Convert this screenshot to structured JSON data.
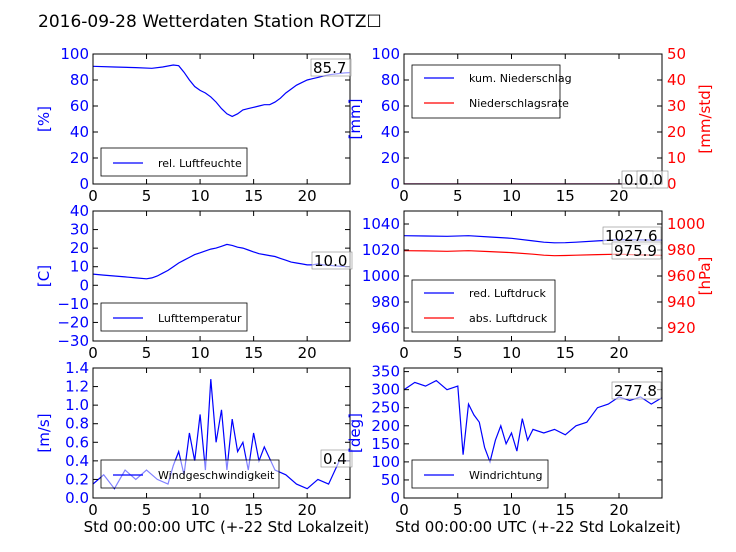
{
  "figure_title": "2016-09-28 Wetterdaten Station ROTZ☐",
  "colors": {
    "blue": "#0000ff",
    "red": "#ff0000",
    "black": "#000000",
    "grey": "#888888"
  },
  "chart_data": [
    {
      "id": "humidity",
      "type": "line",
      "xlim": [
        0,
        24
      ],
      "xticks": [
        "0",
        "5",
        "10",
        "15",
        "20"
      ],
      "ylim": [
        0,
        100
      ],
      "yticks": [
        "0",
        "20",
        "40",
        "60",
        "80",
        "100"
      ],
      "ylabel": "[%]",
      "value_label": "85.7",
      "legend": [
        {
          "label": "rel. Luftfeuchte",
          "color": "blue"
        }
      ],
      "series": [
        {
          "name": "rel. Luftfeuchte",
          "color": "blue",
          "axis": "left",
          "x": [
            0,
            2,
            4,
            5.5,
            6.5,
            7.5,
            8,
            8.5,
            9,
            9.5,
            10,
            10.5,
            11,
            11.5,
            12,
            12.5,
            13,
            13.5,
            14,
            14.5,
            15,
            15.5,
            16,
            16.5,
            17,
            17.5,
            18,
            18.5,
            19,
            19.5,
            20,
            20.5,
            21,
            21.5,
            22,
            22.5,
            23,
            23.5,
            24
          ],
          "y": [
            90.5,
            90,
            89.5,
            89,
            90,
            91.5,
            91,
            86,
            80,
            75,
            72,
            70,
            67,
            63,
            58,
            54,
            52,
            54,
            57,
            58,
            59,
            60,
            61,
            61,
            63,
            66,
            70,
            73,
            76,
            78,
            80,
            81,
            82,
            83,
            84,
            84.5,
            85,
            85.5,
            85.7
          ]
        }
      ]
    },
    {
      "id": "precip",
      "type": "line",
      "xlim": [
        0,
        24
      ],
      "xticks": [
        "0",
        "5",
        "10",
        "15",
        "20"
      ],
      "ylim": [
        0,
        100
      ],
      "yticks": [
        "0",
        "20",
        "40",
        "60",
        "80",
        "100"
      ],
      "ylabel": "[mm]",
      "ylim_right": [
        0,
        50
      ],
      "yticks_right": [
        "0",
        "10",
        "20",
        "30",
        "40",
        "50"
      ],
      "ylabel_right": "[mm/std]",
      "value_labels": [
        "0.0",
        "0.0"
      ],
      "legend": [
        {
          "label": "kum. Niederschlag",
          "color": "blue"
        },
        {
          "label": "Niederschlagsrate",
          "color": "red"
        }
      ],
      "series": [
        {
          "name": "kum. Niederschlag",
          "color": "blue",
          "axis": "left",
          "x": [
            0,
            24
          ],
          "y": [
            0,
            0
          ]
        },
        {
          "name": "Niederschlagsrate",
          "color": "red",
          "axis": "right",
          "x": [
            0,
            24
          ],
          "y": [
            0,
            0
          ]
        }
      ]
    },
    {
      "id": "temperature",
      "type": "line",
      "xlim": [
        0,
        24
      ],
      "xticks": [
        "0",
        "5",
        "10",
        "15",
        "20"
      ],
      "ylim": [
        -30,
        40
      ],
      "yticks": [
        "−30",
        "−20",
        "−10",
        "0",
        "10",
        "20",
        "30",
        "40"
      ],
      "ylabel": "[C]",
      "value_label": "10.0",
      "legend": [
        {
          "label": "Lufttemperatur",
          "color": "blue"
        }
      ],
      "series": [
        {
          "name": "Lufttemperatur",
          "color": "blue",
          "axis": "left",
          "x": [
            0,
            1,
            2,
            3,
            4,
            5,
            5.5,
            6,
            6.5,
            7,
            7.5,
            8,
            8.5,
            9,
            9.5,
            10,
            10.5,
            11,
            11.5,
            12,
            12.5,
            13,
            13.5,
            14,
            14.5,
            15,
            15.5,
            16,
            16.5,
            17,
            17.5,
            18,
            18.5,
            19,
            19.5,
            20,
            20.5,
            21,
            21.5,
            22,
            22.5,
            23,
            23.5,
            24
          ],
          "y": [
            6,
            5.5,
            5,
            4.5,
            4,
            3.5,
            4,
            5,
            6.5,
            8,
            10,
            12,
            13.5,
            15,
            16.5,
            17.5,
            18.5,
            19.5,
            20,
            21,
            22,
            21.5,
            20.5,
            20,
            19,
            18,
            17,
            16.5,
            16,
            15.5,
            14.5,
            13.5,
            12.5,
            12,
            11.5,
            11,
            11,
            11.5,
            11,
            10.8,
            10.5,
            10.3,
            10.1,
            10
          ]
        }
      ]
    },
    {
      "id": "pressure",
      "type": "line",
      "xlim": [
        0,
        24
      ],
      "xticks": [
        "0",
        "5",
        "10",
        "15",
        "20"
      ],
      "ylim": [
        950,
        1050
      ],
      "yticks": [
        "960",
        "980",
        "1000",
        "1020",
        "1040"
      ],
      "ylim_right": [
        910,
        1010
      ],
      "yticks_right": [
        "920",
        "940",
        "960",
        "980",
        "1000"
      ],
      "ylabel_right": "[hPa]",
      "value_labels": [
        "1027.6",
        "975.9"
      ],
      "legend": [
        {
          "label": "red. Luftdruck",
          "color": "blue"
        },
        {
          "label": "abs. Luftdruck",
          "color": "red"
        }
      ],
      "series": [
        {
          "name": "red. Luftdruck",
          "color": "blue",
          "axis": "left",
          "x": [
            0,
            2,
            4,
            6,
            8,
            10,
            12,
            13,
            14,
            15,
            16,
            18,
            20,
            22,
            24
          ],
          "y": [
            1031,
            1030.8,
            1030.5,
            1031,
            1030,
            1029,
            1027,
            1026,
            1025.5,
            1025.6,
            1026,
            1027,
            1028,
            1027.8,
            1027.6
          ]
        },
        {
          "name": "abs. Luftdruck",
          "color": "red",
          "axis": "right",
          "x": [
            0,
            2,
            4,
            6,
            8,
            10,
            12,
            13,
            14,
            15,
            16,
            18,
            20,
            22,
            24
          ],
          "y": [
            979.5,
            979.3,
            979,
            979.5,
            978.8,
            978,
            976.8,
            976,
            975.6,
            975.8,
            976,
            976.5,
            976.8,
            976.2,
            975.9
          ]
        }
      ]
    },
    {
      "id": "wind_speed",
      "type": "line",
      "xlim": [
        0,
        24
      ],
      "xticks": [
        "0",
        "5",
        "10",
        "15",
        "20"
      ],
      "ylim": [
        0,
        1.4
      ],
      "yticks": [
        "0.0",
        "0.2",
        "0.4",
        "0.6",
        "0.8",
        "1.0",
        "1.2",
        "1.4"
      ],
      "ylabel": "[m/s]",
      "xlabel": "Std 00:00:00 UTC (+-22 Std Lokalzeit)",
      "value_label": "0.4",
      "legend": [
        {
          "label": "Windgeschwindigkeit",
          "color": "blue"
        }
      ],
      "series": [
        {
          "name": "Windgeschwindigkeit",
          "color": "blue",
          "axis": "left",
          "x": [
            0,
            1,
            2,
            3,
            4,
            5,
            6,
            7,
            7.5,
            8,
            8.5,
            9,
            9.5,
            10,
            10.5,
            11,
            11.5,
            12,
            12.5,
            13,
            13.5,
            14,
            14.5,
            15,
            15.5,
            16,
            17,
            18,
            19,
            20,
            21,
            22,
            23,
            24
          ],
          "y": [
            0.15,
            0.25,
            0.1,
            0.3,
            0.2,
            0.3,
            0.2,
            0.15,
            0.35,
            0.5,
            0.25,
            0.7,
            0.4,
            0.9,
            0.3,
            1.28,
            0.6,
            0.95,
            0.3,
            0.85,
            0.5,
            0.6,
            0.3,
            0.7,
            0.4,
            0.55,
            0.3,
            0.25,
            0.15,
            0.1,
            0.2,
            0.15,
            0.4,
            0.4
          ]
        }
      ]
    },
    {
      "id": "wind_direction",
      "type": "line",
      "xlim": [
        0,
        24
      ],
      "xticks": [
        "0",
        "5",
        "10",
        "15",
        "20"
      ],
      "ylim": [
        0,
        360
      ],
      "yticks": [
        "0",
        "50",
        "100",
        "150",
        "200",
        "250",
        "300",
        "350"
      ],
      "ylabel": "[deg]",
      "xlabel": "Std 00:00:00 UTC (+-22 Std Lokalzeit)",
      "value_label": "277.8",
      "legend": [
        {
          "label": "Windrichtung",
          "color": "blue"
        }
      ],
      "series": [
        {
          "name": "Windrichtung",
          "color": "blue",
          "axis": "left",
          "x": [
            0,
            1,
            2,
            3,
            4,
            5,
            5.5,
            6,
            6.5,
            7,
            7.5,
            8,
            8.5,
            9,
            9.5,
            10,
            10.5,
            11,
            11.5,
            12,
            13,
            14,
            15,
            16,
            17,
            18,
            19,
            20,
            21,
            22,
            23,
            24
          ],
          "y": [
            300,
            320,
            310,
            325,
            300,
            310,
            120,
            260,
            230,
            210,
            140,
            100,
            160,
            200,
            150,
            180,
            130,
            220,
            160,
            190,
            180,
            190,
            175,
            200,
            210,
            250,
            260,
            280,
            270,
            280,
            260,
            277.8
          ]
        }
      ]
    }
  ]
}
